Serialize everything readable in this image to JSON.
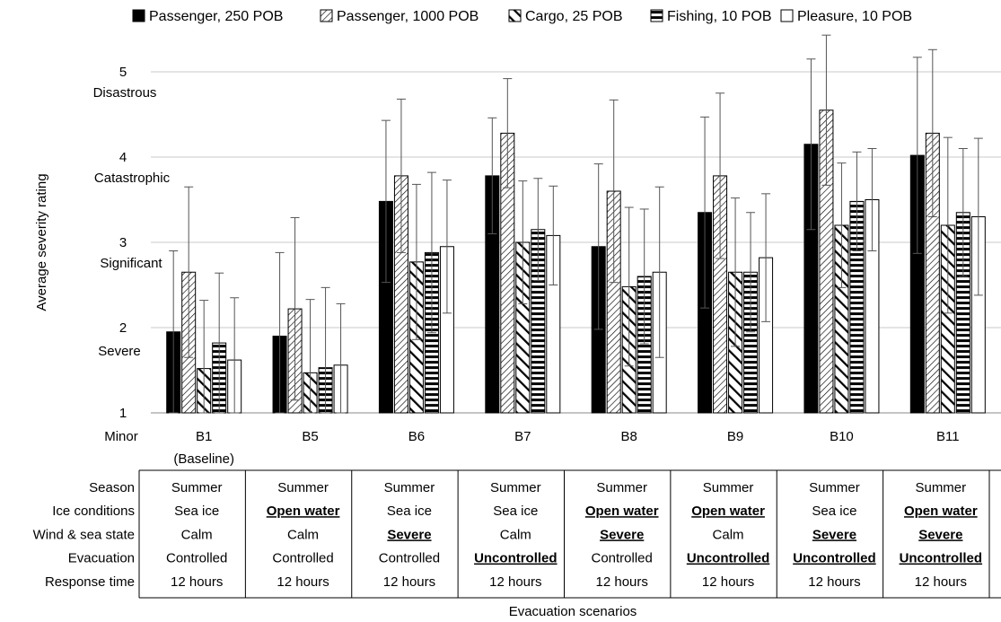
{
  "chart_data": {
    "type": "bar",
    "ylabel": "Average severity rating",
    "xlabel": "Evacuation scenarios",
    "ylim": [
      1,
      5.4
    ],
    "yticks": [
      1,
      2,
      3,
      4,
      5
    ],
    "severity_labels": [
      {
        "y": 1,
        "label": "Minor"
      },
      {
        "y": 2,
        "label": "Severe"
      },
      {
        "y": 3,
        "label": "Significant"
      },
      {
        "y": 4,
        "label": "Catastrophic"
      },
      {
        "y": 5,
        "label": "Disastrous"
      }
    ],
    "grid": true,
    "legend_position": "top",
    "categories": [
      "B1",
      "B5",
      "B6",
      "B7",
      "B8",
      "B9",
      "B10",
      "B11"
    ],
    "category_sublabels": [
      "(Baseline)",
      "",
      "",
      "",
      "",
      "",
      "",
      ""
    ],
    "series": [
      {
        "name": "Passenger, 250 POB",
        "pattern": "solid",
        "values": [
          1.95,
          1.9,
          3.48,
          3.78,
          2.95,
          3.35,
          4.15,
          4.02
        ],
        "error": [
          0.95,
          0.98,
          0.95,
          0.68,
          0.97,
          1.12,
          1.0,
          1.15
        ]
      },
      {
        "name": "Passenger, 1000 POB",
        "pattern": "fine-diagonal",
        "values": [
          2.65,
          2.22,
          3.78,
          4.28,
          3.6,
          3.78,
          4.55,
          4.28
        ],
        "error": [
          1.0,
          1.07,
          0.9,
          0.64,
          1.07,
          0.97,
          0.88,
          0.98
        ]
      },
      {
        "name": "Cargo, 25 POB",
        "pattern": "bold-diagonal",
        "values": [
          1.52,
          1.47,
          2.77,
          3.0,
          2.48,
          2.65,
          3.2,
          3.2
        ],
        "error": [
          0.8,
          0.86,
          0.91,
          0.72,
          0.93,
          0.87,
          0.73,
          1.03
        ]
      },
      {
        "name": "Fishing, 10 POB",
        "pattern": "horizontal",
        "values": [
          1.82,
          1.53,
          2.88,
          3.15,
          2.6,
          2.65,
          3.48,
          3.35
        ],
        "error": [
          0.82,
          0.94,
          0.94,
          0.6,
          0.79,
          0.7,
          0.58,
          0.75
        ]
      },
      {
        "name": "Pleasure, 10 POB",
        "pattern": "white",
        "values": [
          1.62,
          1.56,
          2.95,
          3.08,
          2.65,
          2.82,
          3.5,
          3.3
        ],
        "error": [
          0.73,
          0.72,
          0.78,
          0.58,
          1.0,
          0.75,
          0.6,
          0.92
        ]
      }
    ]
  },
  "scenario_table": {
    "row_labels": [
      "Season",
      "Ice conditions",
      "Wind & sea state",
      "Evacuation",
      "Response time"
    ],
    "columns": [
      [
        {
          "text": "Summer",
          "highlight": false
        },
        {
          "text": "Sea ice",
          "highlight": false
        },
        {
          "text": "Calm",
          "highlight": false
        },
        {
          "text": "Controlled",
          "highlight": false
        },
        {
          "text": "12 hours",
          "highlight": false
        }
      ],
      [
        {
          "text": "Summer",
          "highlight": false
        },
        {
          "text": "Open water",
          "highlight": true
        },
        {
          "text": "Calm",
          "highlight": false
        },
        {
          "text": "Controlled",
          "highlight": false
        },
        {
          "text": "12 hours",
          "highlight": false
        }
      ],
      [
        {
          "text": "Summer",
          "highlight": false
        },
        {
          "text": "Sea ice",
          "highlight": false
        },
        {
          "text": "Severe",
          "highlight": true
        },
        {
          "text": "Controlled",
          "highlight": false
        },
        {
          "text": "12 hours",
          "highlight": false
        }
      ],
      [
        {
          "text": "Summer",
          "highlight": false
        },
        {
          "text": "Sea ice",
          "highlight": false
        },
        {
          "text": "Calm",
          "highlight": false
        },
        {
          "text": "Uncontrolled",
          "highlight": true
        },
        {
          "text": "12 hours",
          "highlight": false
        }
      ],
      [
        {
          "text": "Summer",
          "highlight": false
        },
        {
          "text": "Open water",
          "highlight": true
        },
        {
          "text": "Severe",
          "highlight": true
        },
        {
          "text": "Controlled",
          "highlight": false
        },
        {
          "text": "12 hours",
          "highlight": false
        }
      ],
      [
        {
          "text": "Summer",
          "highlight": false
        },
        {
          "text": "Open water",
          "highlight": true
        },
        {
          "text": "Calm",
          "highlight": false
        },
        {
          "text": "Uncontrolled",
          "highlight": true
        },
        {
          "text": "12 hours",
          "highlight": false
        }
      ],
      [
        {
          "text": "Summer",
          "highlight": false
        },
        {
          "text": "Sea ice",
          "highlight": false
        },
        {
          "text": "Severe",
          "highlight": true
        },
        {
          "text": "Uncontrolled",
          "highlight": true
        },
        {
          "text": "12 hours",
          "highlight": false
        }
      ],
      [
        {
          "text": "Summer",
          "highlight": false
        },
        {
          "text": "Open water",
          "highlight": true
        },
        {
          "text": "Severe",
          "highlight": true
        },
        {
          "text": "Uncontrolled",
          "highlight": true
        },
        {
          "text": "12 hours",
          "highlight": false
        }
      ]
    ]
  },
  "colors": {
    "bar_stroke": "#000000",
    "grid": "#c8c8c8",
    "error_bar": "#555555",
    "table_border": "#000000"
  }
}
